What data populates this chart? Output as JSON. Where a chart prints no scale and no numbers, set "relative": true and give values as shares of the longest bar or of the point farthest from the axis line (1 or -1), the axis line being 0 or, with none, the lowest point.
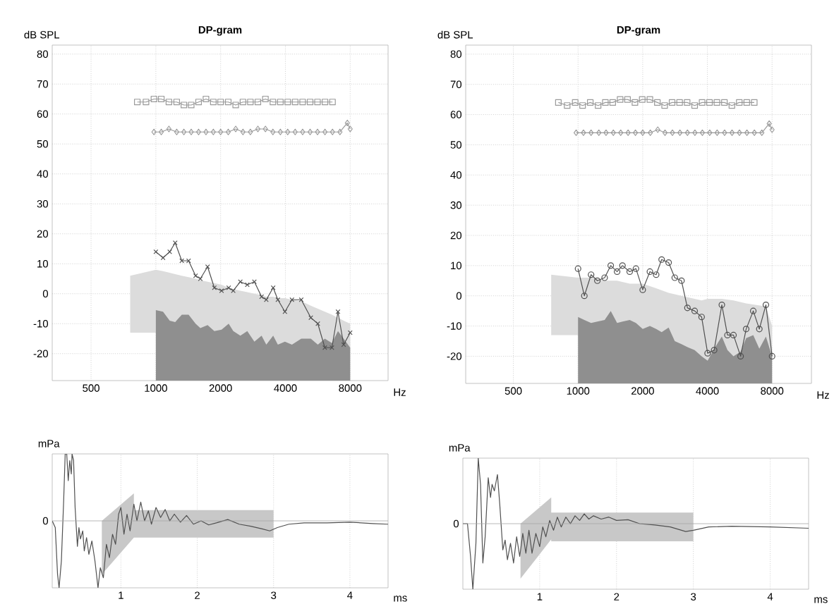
{
  "chart_data": [
    {
      "type": "line",
      "title": "DP-gram",
      "xlabel": "Hz",
      "ylabel": "dB SPL",
      "log": "x",
      "xlim": [
        330,
        12000
      ],
      "xticks": [
        500,
        1000,
        2000,
        4000,
        8000
      ],
      "ylim": [
        -29,
        83
      ],
      "yticks": [
        -20,
        -10,
        0,
        10,
        20,
        30,
        40,
        50,
        60,
        70,
        80
      ],
      "grid": true,
      "series": [
        {
          "color": "#dcdcdc",
          "x": [
            760,
            1000,
            1080,
            1160,
            1230,
            1320,
            1420,
            1530,
            1610,
            1740,
            1870,
            2020,
            2180,
            2290,
            2470,
            2660,
            2870,
            3100,
            3260,
            3510,
            3690,
            3980,
            4290,
            4740,
            5250,
            5660,
            6100,
            6580,
            7020,
            7460,
            8000
          ],
          "values": [
            null,
            null,
            null,
            null,
            null,
            null,
            null,
            null,
            null,
            null,
            null,
            null,
            null,
            null,
            null,
            null,
            null,
            null,
            null,
            null,
            null,
            null,
            null,
            null,
            null,
            null,
            null,
            null,
            null,
            null,
            null
          ],
          "upper": [
            6,
            8,
            7.5,
            7,
            6.5,
            6,
            5.5,
            5,
            4.5,
            4,
            3.5,
            3,
            2,
            1.5,
            1,
            0.5,
            0,
            -0.5,
            -1,
            -1,
            -1.5,
            -1.5,
            -2,
            -2.5,
            -4,
            -5,
            -6,
            -7,
            -8,
            -9,
            -10
          ],
          "lower": [
            -13,
            -13,
            -29,
            -29,
            -29,
            -29,
            -29,
            -29,
            -29,
            -29,
            -29,
            -29,
            -29,
            -29,
            -29,
            -29,
            -29,
            -29,
            -29,
            -29,
            -29,
            -29,
            -29,
            -29,
            -29,
            -29,
            -29,
            -29,
            -29,
            -29,
            -29
          ]
        },
        {
          "color": "#8f8f8f",
          "x": [
            1000,
            1080,
            1160,
            1230,
            1320,
            1420,
            1530,
            1610,
            1740,
            1870,
            2020,
            2180,
            2290,
            2470,
            2660,
            2870,
            3100,
            3260,
            3510,
            3690,
            3980,
            4290,
            4740,
            5250,
            5660,
            6100,
            6580,
            7020,
            7460,
            8000
          ],
          "values": [
            null,
            null,
            null,
            null,
            null,
            null,
            null,
            null,
            null,
            null,
            null,
            null,
            null,
            null,
            null,
            null,
            null,
            null,
            null,
            null,
            null,
            null,
            null,
            null,
            null,
            null,
            null,
            null,
            null,
            null
          ],
          "upper": [
            -5.5,
            -6,
            -9,
            -9.5,
            -7,
            -7,
            -10,
            -11.5,
            -10.5,
            -12.5,
            -12,
            -10,
            -12.5,
            -14,
            -12.5,
            -16,
            -14,
            -17,
            -14,
            -17,
            -16,
            -17,
            -15,
            -15,
            -17,
            -15,
            -16.5,
            -12.5,
            -15,
            -18
          ],
          "lower": [
            -29,
            -29,
            -29,
            -29,
            -29,
            -29,
            -29,
            -29,
            -29,
            -29,
            -29,
            -29,
            -29,
            -29,
            -29,
            -29,
            -29,
            -29,
            -29,
            -29,
            -29,
            -29,
            -29,
            -29,
            -29,
            -29,
            -29,
            -29,
            -29,
            -29
          ]
        },
        {
          "marker": "square",
          "color": "#9a9a9a",
          "x": [
            820,
            900,
            980,
            1060,
            1150,
            1250,
            1350,
            1460,
            1580,
            1710,
            1850,
            2000,
            2170,
            2350,
            2540,
            2750,
            2980,
            3230,
            3500,
            3790,
            4100,
            4440,
            4810,
            5210,
            5640,
            6110,
            6620
          ],
          "values": [
            64,
            64,
            65,
            65,
            64,
            64,
            63,
            63,
            64,
            65,
            64,
            64,
            64,
            63,
            64,
            64,
            64,
            65,
            64,
            64,
            64,
            64,
            64,
            64,
            64,
            64,
            64
          ]
        },
        {
          "marker": "diamond",
          "color": "#9a9a9a",
          "x": [
            980,
            1060,
            1150,
            1250,
            1350,
            1460,
            1580,
            1710,
            1850,
            2000,
            2170,
            2350,
            2540,
            2750,
            2980,
            3230,
            3500,
            3790,
            4100,
            4440,
            4810,
            5210,
            5640,
            6110,
            6620,
            7170,
            7760,
            8000
          ],
          "values": [
            54,
            54,
            55,
            54,
            54,
            54,
            54,
            54,
            54,
            54,
            54,
            55,
            54,
            54,
            55,
            55,
            54,
            54,
            54,
            54,
            54,
            54,
            54,
            54,
            54,
            54,
            57,
            55
          ]
        },
        {
          "marker": "cross",
          "color": "#505050",
          "x": [
            1000,
            1080,
            1160,
            1230,
            1320,
            1420,
            1530,
            1610,
            1740,
            1870,
            2020,
            2180,
            2290,
            2470,
            2660,
            2870,
            3100,
            3260,
            3510,
            3690,
            3980,
            4290,
            4740,
            5250,
            5660,
            6100,
            6580,
            7020,
            7460,
            8000
          ],
          "values": [
            14,
            12,
            14,
            17,
            11,
            11,
            6,
            5,
            9,
            2,
            1,
            2,
            1,
            4,
            3,
            4,
            -1,
            -2,
            2,
            -2,
            -6,
            -2,
            -2,
            -8,
            -10,
            -18,
            -18,
            -6,
            -17,
            -13
          ]
        }
      ]
    },
    {
      "type": "line",
      "title": "DP-gram",
      "xlabel": "Hz",
      "ylabel": "dB SPL",
      "log": "x",
      "xlim": [
        300,
        12200
      ],
      "xticks": [
        500,
        1000,
        2000,
        4000,
        8000
      ],
      "ylim": [
        -29,
        83
      ],
      "yticks": [
        -20,
        -10,
        0,
        10,
        20,
        30,
        40,
        50,
        60,
        70,
        80
      ],
      "grid": true,
      "series": [
        {
          "color": "#dcdcdc",
          "x": [
            750,
            1000,
            1150,
            1330,
            1520,
            1740,
            2000,
            2310,
            2640,
            3030,
            3490,
            3760,
            4010,
            4670,
            5290,
            6060,
            7490,
            8000
          ],
          "values": [
            null,
            null,
            null,
            null,
            null,
            null,
            null,
            null,
            null,
            null,
            null,
            null,
            null,
            null,
            null,
            null,
            null,
            null
          ],
          "upper": [
            7,
            6,
            6,
            5,
            5,
            4,
            4,
            2.5,
            1,
            0,
            -1,
            -1.5,
            -1,
            -1,
            -1.5,
            -2.5,
            -3.5,
            -10
          ],
          "lower": [
            -13,
            -13,
            -29,
            -29,
            -29,
            -29,
            -29,
            -29,
            -29,
            -29,
            -29,
            -29,
            -29,
            -29,
            -29,
            -29,
            -29,
            -29
          ]
        },
        {
          "color": "#8f8f8f",
          "x": [
            1000,
            1070,
            1150,
            1230,
            1330,
            1420,
            1520,
            1610,
            1740,
            1860,
            2000,
            2160,
            2310,
            2450,
            2640,
            2820,
            3030,
            3230,
            3490,
            3760,
            4010,
            4300,
            4670,
            4960,
            5290,
            5710,
            6060,
            6540,
            6980,
            7490,
            8000
          ],
          "values": [
            null,
            null,
            null,
            null,
            null,
            null,
            null,
            null,
            null,
            null,
            null,
            null,
            null,
            null,
            null,
            null,
            null,
            null,
            null,
            null,
            null,
            null,
            null,
            null,
            null,
            null,
            null,
            null,
            null,
            null,
            null
          ],
          "lower": [
            -29,
            -29,
            -29,
            -29,
            -29,
            -29,
            -29,
            -29,
            -29,
            -29,
            -29,
            -29,
            -29,
            -29,
            -29,
            -29,
            -29,
            -29,
            -29,
            -29,
            -29,
            -29,
            -29,
            -29,
            -29,
            -29,
            -29,
            -29,
            -29,
            -29,
            -29
          ],
          "upper": [
            -7,
            -8,
            -9,
            -8.5,
            -8,
            -5,
            -9,
            -8.5,
            -8,
            -9,
            -11,
            -10,
            -11,
            -12,
            -10.5,
            -15,
            -16,
            -17,
            -18,
            -20,
            -21.5,
            -17.5,
            -13.5,
            -18,
            -20,
            -18.5,
            -14,
            -13,
            -17.5,
            -13.5,
            -20
          ]
        },
        {
          "marker": "square",
          "color": "#9a9a9a",
          "x": [
            810,
            890,
            970,
            1050,
            1140,
            1240,
            1340,
            1450,
            1570,
            1700,
            1840,
            1990,
            2160,
            2340,
            2530,
            2740,
            2970,
            3220,
            3490,
            3780,
            4090,
            4430,
            4800,
            5200,
            5630,
            6100,
            6610
          ],
          "values": [
            64,
            63,
            64,
            63,
            64,
            63,
            64,
            64,
            65,
            65,
            64,
            65,
            65,
            64,
            63,
            64,
            64,
            64,
            63,
            64,
            64,
            64,
            64,
            63,
            64,
            64,
            64
          ]
        },
        {
          "marker": "diamond",
          "color": "#9a9a9a",
          "x": [
            980,
            1060,
            1150,
            1250,
            1350,
            1460,
            1580,
            1710,
            1850,
            2000,
            2170,
            2350,
            2540,
            2750,
            2980,
            3230,
            3500,
            3790,
            4100,
            4440,
            4810,
            5210,
            5640,
            6110,
            6620,
            7170,
            7760,
            8000
          ],
          "values": [
            54,
            54,
            54,
            54,
            54,
            54,
            54,
            54,
            54,
            54,
            54,
            55,
            54,
            54,
            54,
            54,
            54,
            54,
            54,
            54,
            54,
            54,
            54,
            54,
            54,
            54,
            57,
            55
          ]
        },
        {
          "marker": "circle",
          "color": "#505050",
          "x": [
            1000,
            1070,
            1150,
            1230,
            1330,
            1420,
            1520,
            1610,
            1740,
            1860,
            2000,
            2160,
            2310,
            2450,
            2640,
            2820,
            3030,
            3230,
            3490,
            3760,
            4010,
            4300,
            4670,
            4960,
            5290,
            5710,
            6060,
            6540,
            6980,
            7490,
            8000
          ],
          "values": [
            9,
            0,
            7,
            5,
            6,
            10,
            8,
            10,
            8,
            9,
            2,
            8,
            7,
            12,
            11,
            6,
            5,
            -4,
            -5,
            -7,
            -19,
            -18,
            -3,
            -13,
            -13,
            -20,
            -11,
            -5,
            -11,
            -3,
            -20
          ]
        }
      ]
    },
    {
      "type": "line",
      "relative": true,
      "xlabel": "ms",
      "ylabel": "mPa",
      "xlim": [
        0.1,
        4.5
      ],
      "xticks": [
        1,
        2,
        3,
        4
      ],
      "grid": "x",
      "ref_lines": [
        {
          "axis": "y",
          "value": 0,
          "label": "0"
        }
      ],
      "series": [
        {
          "color": "#c8c8c8",
          "x": [
            0.75,
            1.17,
            1.17,
            3.0
          ],
          "values": [
            null,
            null,
            null,
            null
          ],
          "lower": [
            -0.8,
            -0.25,
            -0.25,
            -0.25
          ],
          "upper": [
            0,
            0.41,
            0.16,
            0.16
          ]
        },
        {
          "color": "#505050",
          "x": [
            0.1,
            0.14,
            0.17,
            0.19,
            0.22,
            0.25,
            0.27,
            0.29,
            0.31,
            0.33,
            0.35,
            0.36,
            0.38,
            0.4,
            0.43,
            0.45,
            0.47,
            0.5,
            0.52,
            0.55,
            0.58,
            0.62,
            0.66,
            0.7,
            0.73,
            0.77,
            0.81,
            0.85,
            0.89,
            0.93,
            0.97,
            1.0,
            1.04,
            1.08,
            1.12,
            1.17,
            1.21,
            1.26,
            1.31,
            1.36,
            1.4,
            1.46,
            1.52,
            1.58,
            1.64,
            1.7,
            1.78,
            1.86,
            1.95,
            2.05,
            2.15,
            2.25,
            2.4,
            2.55,
            2.7,
            2.85,
            2.95,
            3.05,
            3.2,
            3.4,
            3.7,
            4.0,
            4.3,
            4.5
          ],
          "values": [
            0,
            -0.1,
            -0.8,
            -1,
            -0.6,
            0.3,
            1,
            1,
            0.6,
            0.9,
            0.7,
            1,
            0.9,
            0.2,
            -0.38,
            -0.1,
            -0.27,
            -0.15,
            -0.45,
            -0.25,
            -0.5,
            -0.3,
            -0.6,
            -1,
            -0.7,
            -0.85,
            -0.35,
            -0.55,
            -0.2,
            -0.35,
            0.1,
            0.2,
            -0.2,
            0.1,
            -0.15,
            0.25,
            0,
            0.28,
            0,
            0.15,
            -0.05,
            0.2,
            0.05,
            0.17,
            0,
            0.1,
            -0.02,
            0.08,
            -0.05,
            0,
            -0.06,
            -0.03,
            0.02,
            -0.05,
            -0.08,
            -0.12,
            -0.15,
            -0.1,
            -0.05,
            -0.03,
            -0.03,
            -0.02,
            -0.04,
            -0.05
          ]
        }
      ]
    },
    {
      "type": "line",
      "relative": true,
      "xlabel": "ms",
      "ylabel": "mPa",
      "xlim": [
        0,
        4.5
      ],
      "xticks": [
        1,
        2,
        3,
        4
      ],
      "grid": "x",
      "ref_lines": [
        {
          "axis": "y",
          "value": 0,
          "label": "0"
        }
      ],
      "series": [
        {
          "color": "#c8c8c8",
          "x": [
            0.75,
            1.15,
            1.15,
            3.0
          ],
          "values": [
            null,
            null,
            null,
            null
          ],
          "lower": [
            -0.84,
            -0.24,
            -0.27,
            -0.27
          ],
          "upper": [
            0,
            0.4,
            0.17,
            0.17
          ]
        },
        {
          "color": "#505050",
          "x": [
            0.0,
            0.06,
            0.1,
            0.13,
            0.17,
            0.2,
            0.23,
            0.26,
            0.29,
            0.33,
            0.36,
            0.38,
            0.41,
            0.45,
            0.48,
            0.52,
            0.55,
            0.58,
            0.62,
            0.66,
            0.7,
            0.74,
            0.78,
            0.82,
            0.86,
            0.9,
            0.95,
            1.0,
            1.04,
            1.08,
            1.13,
            1.18,
            1.23,
            1.28,
            1.34,
            1.4,
            1.46,
            1.52,
            1.58,
            1.64,
            1.7,
            1.8,
            1.9,
            2.0,
            2.15,
            2.3,
            2.5,
            2.7,
            2.9,
            3.0,
            3.2,
            3.5,
            4.0,
            4.5
          ],
          "values": [
            0,
            0,
            -0.5,
            -1,
            -0.3,
            1,
            0.6,
            -0.6,
            -0.2,
            0.7,
            0.4,
            0.6,
            0.5,
            0.75,
            0.3,
            -0.4,
            -0.25,
            -0.55,
            -0.3,
            -0.6,
            -0.2,
            -0.5,
            -0.15,
            -0.45,
            -0.1,
            -0.45,
            -0.15,
            -0.35,
            -0.05,
            -0.2,
            0.05,
            -0.1,
            0.1,
            -0.05,
            0.1,
            0,
            0.12,
            0.05,
            0.15,
            0.07,
            0.12,
            0.07,
            0.1,
            0.05,
            0.06,
            0,
            -0.02,
            -0.05,
            -0.12,
            -0.1,
            -0.05,
            -0.04,
            -0.05,
            -0.07
          ]
        }
      ]
    }
  ]
}
